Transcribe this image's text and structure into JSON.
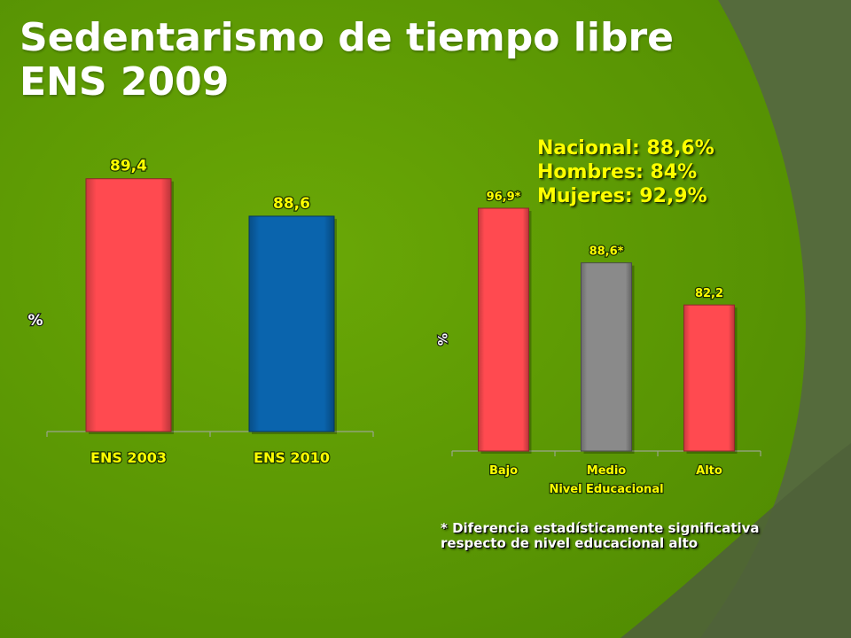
{
  "slide": {
    "title_line1": "Sedentarismo de tiempo libre",
    "title_line2": "ENS 2009",
    "stats": [
      "Nacional: 88,6%",
      "Hombres: 84%",
      "Mujeres: 92,9%"
    ],
    "footnote_line1": "* Diferencia estadísticamente significativa",
    "footnote_line2": "respecto de  nivel educacional alto"
  },
  "colors": {
    "background": "#5e9a03",
    "title": "#ffffff",
    "highlight_text": "#ffff00",
    "bar_red": "#ff4a50",
    "bar_blue": "#0a64ad",
    "bar_gray": "#8a8a8a"
  },
  "chart_data": [
    {
      "type": "bar",
      "categories": [
        "ENS 2003",
        "ENS 2010"
      ],
      "values": [
        89.4,
        88.6
      ],
      "value_labels": [
        "89,4",
        "88,6"
      ],
      "bar_colors": [
        "#ff4a50",
        "#0a64ad"
      ],
      "ylabel": "%",
      "xlabel": "",
      "ylim": [
        84,
        90
      ],
      "grid": false,
      "legend": "none"
    },
    {
      "type": "bar",
      "categories": [
        "Bajo",
        "Medio",
        "Alto"
      ],
      "values": [
        96.9,
        88.6,
        82.2
      ],
      "value_labels": [
        "96,9*",
        "88,6*",
        "82,2"
      ],
      "bar_colors": [
        "#ff4a50",
        "#8a8a8a",
        "#ff4a50"
      ],
      "ylabel": "%",
      "xlabel": "Nivel Educacional",
      "ylim": [
        60,
        100
      ],
      "grid": false,
      "legend": "none"
    }
  ]
}
